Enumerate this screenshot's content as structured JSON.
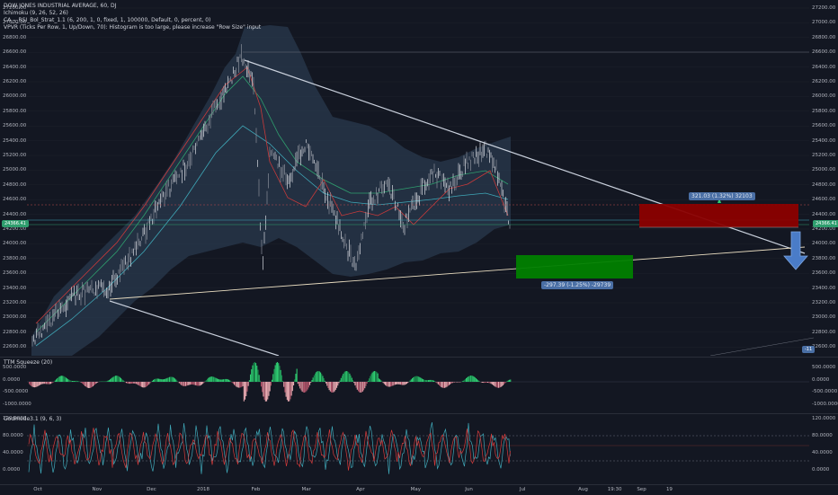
{
  "main": {
    "legend": [
      "DOW JONES INDUSTRIAL AVERAGE, 60, DJ",
      "Ichimoku (9, 26, 52, 26)",
      "CA_-_RSI_Bol_Strat_1.1 (6, 200, 1, 0, fixed, 1, 100000, Default, 0, percent, 0)",
      "VPVR (Ticks Per Row, 1, Up/Down, 70): Histogram is too large, please increase \"Row Size\" input"
    ],
    "price_axis": [
      "27200.00",
      "27000.00",
      "26800.00",
      "26600.00",
      "26400.00",
      "26200.00",
      "26000.00",
      "25800.00",
      "25600.00",
      "25400.00",
      "25200.00",
      "25000.00",
      "24800.00",
      "24600.00",
      "24400.00",
      "24200.00",
      "24000.00",
      "23800.00",
      "23600.00",
      "23400.00",
      "23200.00",
      "23000.00",
      "22800.00",
      "22600.00"
    ],
    "left_tag": "24366.41",
    "right_tag": "24366.41",
    "offscreen_tag": "-11",
    "long_label": "321.03 (1.32%) 32103",
    "short_label": "-297.39 (-1.25%) -29739"
  },
  "ttm": {
    "title": "TTM Squeeze (20)",
    "axis": [
      "500.0000",
      "0.0000",
      "-500.0000",
      "-1000.0000"
    ]
  },
  "godmode": {
    "title": "Godmode3.1 (9, 6, 3)",
    "axis": [
      "120.0000",
      "80.0000",
      "40.0000",
      "0.0000"
    ]
  },
  "time_axis": [
    {
      "label": "Oct",
      "pos": 0.04
    },
    {
      "label": "Nov",
      "pos": 0.11
    },
    {
      "label": "Dec",
      "pos": 0.175
    },
    {
      "label": "2018",
      "pos": 0.235
    },
    {
      "label": "Feb",
      "pos": 0.3
    },
    {
      "label": "Mar",
      "pos": 0.36
    },
    {
      "label": "Apr",
      "pos": 0.425
    },
    {
      "label": "May",
      "pos": 0.49
    },
    {
      "label": "Jun",
      "pos": 0.555
    },
    {
      "label": "Jul",
      "pos": 0.62
    },
    {
      "label": "Aug",
      "pos": 0.69
    },
    {
      "label": "19:30",
      "pos": 0.725
    },
    {
      "label": "Sep",
      "pos": 0.76
    },
    {
      "label": "19",
      "pos": 0.795
    }
  ],
  "colors": {
    "bg": "#131722",
    "grid": "#1e222d",
    "cloud": "#2a3a4d",
    "trend": "#c9d0dc",
    "support": "#e8dcc0",
    "long": "#008000",
    "short": "#8b0000",
    "arrow": "#4a7cc8"
  }
}
